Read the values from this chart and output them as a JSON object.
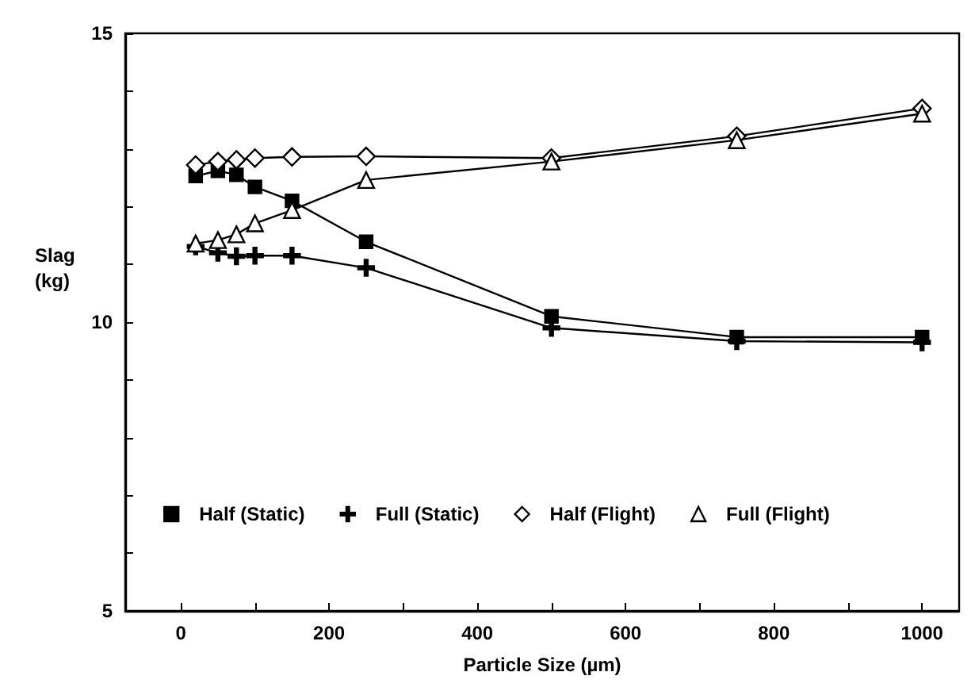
{
  "chart_data": {
    "type": "line",
    "xlabel": "Particle Size (µm)",
    "ylabel": "Slag (kg)",
    "x": [
      20,
      50,
      75,
      100,
      150,
      250,
      500,
      750,
      1000
    ],
    "series": [
      {
        "name": "Half (Static)",
        "color": "#000000",
        "marker": "square",
        "values": [
          12.53,
          12.62,
          12.55,
          12.34,
          12.1,
          11.39,
          10.1,
          9.74,
          9.74
        ]
      },
      {
        "name": "Full (Static)",
        "color": "#000000",
        "marker": "cross",
        "values": [
          11.31,
          11.2,
          11.14,
          11.15,
          11.15,
          10.94,
          9.9,
          9.67,
          9.65
        ]
      },
      {
        "name": "Half (Flight)",
        "color": "#000000",
        "marker": "diamond",
        "values": [
          12.72,
          12.78,
          12.81,
          12.84,
          12.86,
          12.87,
          12.84,
          13.22,
          13.7
        ]
      },
      {
        "name": "Full (Flight)",
        "color": "#000000",
        "marker": "triangle",
        "values": [
          11.36,
          11.42,
          11.52,
          11.71,
          11.94,
          12.46,
          12.78,
          13.15,
          13.61
        ]
      }
    ],
    "xlim": [
      -75,
      1050
    ],
    "xticks": [
      0,
      {
        "value": 100,
        "label": null
      },
      200,
      {
        "value": 300,
        "label": null
      },
      400,
      {
        "value": 500,
        "label": null
      },
      600,
      {
        "value": 700,
        "label": null
      },
      800,
      {
        "value": 900,
        "label": null
      },
      1000
    ],
    "ylim": [
      5,
      15
    ],
    "yticks": [
      5,
      {
        "value": 6,
        "label": null
      },
      {
        "value": 7,
        "label": null
      },
      {
        "value": 8,
        "label": null
      },
      {
        "value": 9,
        "label": null
      },
      10,
      {
        "value": 11,
        "label": null
      },
      {
        "value": 12,
        "label": null
      },
      {
        "value": 13,
        "label": null
      },
      {
        "value": 14,
        "label": null
      },
      15
    ],
    "grid": false,
    "legend": "bottom",
    "line_style": "solid"
  }
}
